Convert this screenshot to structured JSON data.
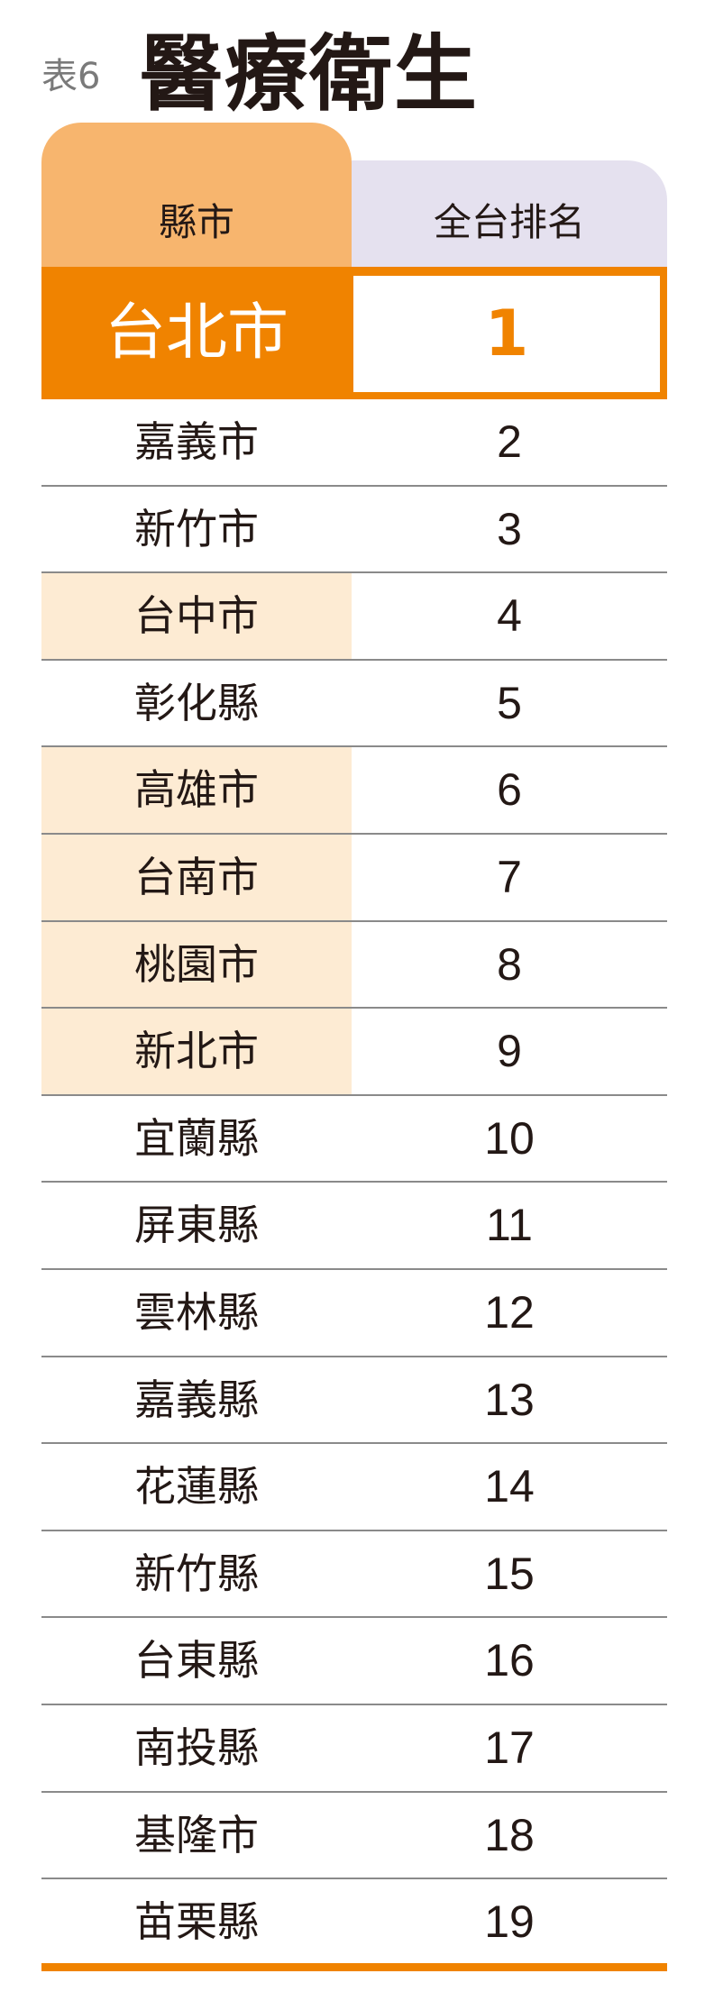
{
  "header": {
    "tag": "表6",
    "title": "醫療衛生"
  },
  "columns": {
    "county": "縣市",
    "rank": "全台排名"
  },
  "colors": {
    "accent": "#f08300",
    "header_left": "#f7b56e",
    "header_right": "#e5e1ef",
    "highlight": "#fdebd3"
  },
  "top": {
    "name": "台北市",
    "rank": "1"
  },
  "rows": [
    {
      "name": "嘉義市",
      "rank": "2",
      "highlight": false
    },
    {
      "name": "新竹市",
      "rank": "3",
      "highlight": false
    },
    {
      "name": "台中市",
      "rank": "4",
      "highlight": true
    },
    {
      "name": "彰化縣",
      "rank": "5",
      "highlight": false
    },
    {
      "name": "高雄市",
      "rank": "6",
      "highlight": true
    },
    {
      "name": "台南市",
      "rank": "7",
      "highlight": true
    },
    {
      "name": "桃園市",
      "rank": "8",
      "highlight": true
    },
    {
      "name": "新北市",
      "rank": "9",
      "highlight": true
    },
    {
      "name": "宜蘭縣",
      "rank": "10",
      "highlight": false
    },
    {
      "name": "屏東縣",
      "rank": "11",
      "highlight": false
    },
    {
      "name": "雲林縣",
      "rank": "12",
      "highlight": false
    },
    {
      "name": "嘉義縣",
      "rank": "13",
      "highlight": false
    },
    {
      "name": "花蓮縣",
      "rank": "14",
      "highlight": false
    },
    {
      "name": "新竹縣",
      "rank": "15",
      "highlight": false
    },
    {
      "name": "台東縣",
      "rank": "16",
      "highlight": false
    },
    {
      "name": "南投縣",
      "rank": "17",
      "highlight": false
    },
    {
      "name": "基隆市",
      "rank": "18",
      "highlight": false
    },
    {
      "name": "苗栗縣",
      "rank": "19",
      "highlight": false
    }
  ]
}
